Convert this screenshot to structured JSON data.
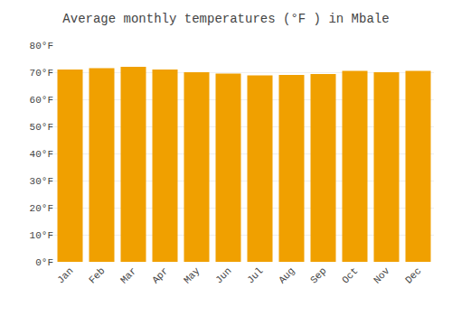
{
  "chart_data": {
    "type": "bar",
    "title": "Average monthly temperatures (°F ) in Mbale",
    "categories": [
      "Jan",
      "Feb",
      "Mar",
      "Apr",
      "May",
      "Jun",
      "Jul",
      "Aug",
      "Sep",
      "Oct",
      "Nov",
      "Dec"
    ],
    "values": [
      71.0,
      71.5,
      72.0,
      71.0,
      70.0,
      69.5,
      68.8,
      69.0,
      69.3,
      70.5,
      70.0,
      70.5
    ],
    "color": "#F0A000",
    "ylim": [
      0,
      80
    ],
    "yticks": [
      {
        "value": 0,
        "label": "0°F"
      },
      {
        "value": 10,
        "label": "10°F"
      },
      {
        "value": 20,
        "label": "20°F"
      },
      {
        "value": 30,
        "label": "30°F"
      },
      {
        "value": 40,
        "label": "40°F"
      },
      {
        "value": 50,
        "label": "50°F"
      },
      {
        "value": 60,
        "label": "60°F"
      },
      {
        "value": 70,
        "label": "70°F"
      },
      {
        "value": 80,
        "label": "80°F"
      }
    ],
    "grid": true
  }
}
